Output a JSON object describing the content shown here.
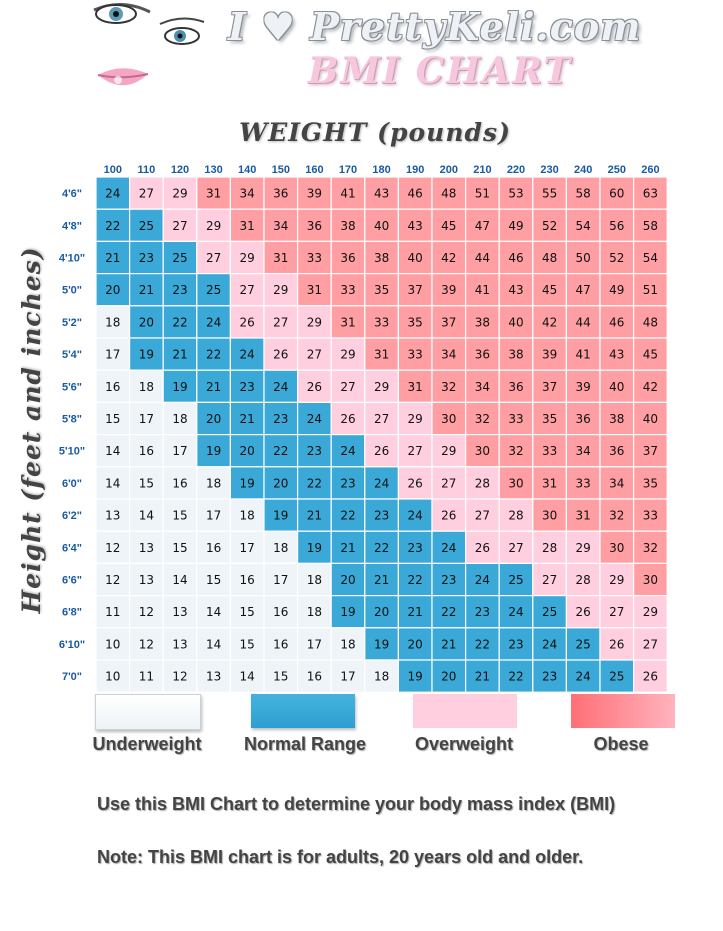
{
  "header": {
    "site_title": "I ♥ PrettyKeli.com",
    "chart_title": "BMI CHART"
  },
  "colors": {
    "underweight": "#eef4f7",
    "normal": "#3aa9d8",
    "overweight": "#ffcfe0",
    "obese": "#ff9ea3",
    "axis_label": "#1a5aa0"
  },
  "chart_data": {
    "type": "heatmap",
    "xlabel": "WEIGHT (pounds)",
    "ylabel": "Height (feet and inches)",
    "x": [
      "100",
      "110",
      "120",
      "130",
      "140",
      "150",
      "160",
      "170",
      "180",
      "190",
      "200",
      "210",
      "220",
      "230",
      "240",
      "250",
      "260"
    ],
    "y": [
      "4'6\"",
      "4'8\"",
      "4'10\"",
      "5'0\"",
      "5'2\"",
      "5'4\"",
      "5'6\"",
      "5'8\"",
      "5'10\"",
      "6'0\"",
      "6'2\"",
      "6'4\"",
      "6'6\"",
      "6'8\"",
      "6'10\"",
      "7'0\""
    ],
    "values": [
      [
        24,
        27,
        29,
        31,
        34,
        36,
        39,
        41,
        43,
        46,
        48,
        51,
        53,
        55,
        58,
        60,
        63
      ],
      [
        22,
        25,
        27,
        29,
        31,
        34,
        36,
        38,
        40,
        43,
        45,
        47,
        49,
        52,
        54,
        56,
        58
      ],
      [
        21,
        23,
        25,
        27,
        29,
        31,
        33,
        36,
        38,
        40,
        42,
        44,
        46,
        48,
        50,
        52,
        54
      ],
      [
        20,
        21,
        23,
        25,
        27,
        29,
        31,
        33,
        35,
        37,
        39,
        41,
        43,
        45,
        47,
        49,
        51
      ],
      [
        18,
        20,
        22,
        24,
        26,
        27,
        29,
        31,
        33,
        35,
        37,
        38,
        40,
        42,
        44,
        46,
        48
      ],
      [
        17,
        19,
        21,
        22,
        24,
        26,
        27,
        29,
        31,
        33,
        34,
        36,
        38,
        39,
        41,
        43,
        45
      ],
      [
        16,
        18,
        19,
        21,
        23,
        24,
        26,
        27,
        29,
        31,
        32,
        34,
        36,
        37,
        39,
        40,
        42
      ],
      [
        15,
        17,
        18,
        20,
        21,
        23,
        24,
        26,
        27,
        29,
        30,
        32,
        33,
        35,
        36,
        38,
        40
      ],
      [
        14,
        16,
        17,
        19,
        20,
        22,
        23,
        24,
        26,
        27,
        29,
        30,
        32,
        33,
        34,
        36,
        37
      ],
      [
        14,
        15,
        16,
        18,
        19,
        20,
        22,
        23,
        24,
        26,
        27,
        28,
        30,
        31,
        33,
        34,
        35
      ],
      [
        13,
        14,
        15,
        17,
        18,
        19,
        21,
        22,
        23,
        24,
        26,
        27,
        28,
        30,
        31,
        32,
        33
      ],
      [
        12,
        13,
        15,
        16,
        17,
        18,
        19,
        21,
        22,
        23,
        24,
        26,
        27,
        28,
        29,
        30,
        32
      ],
      [
        12,
        13,
        14,
        15,
        16,
        17,
        18,
        20,
        21,
        22,
        23,
        24,
        25,
        27,
        28,
        29,
        30
      ],
      [
        11,
        12,
        13,
        14,
        15,
        16,
        18,
        19,
        20,
        21,
        22,
        23,
        24,
        25,
        26,
        27,
        29
      ],
      [
        10,
        12,
        13,
        14,
        15,
        16,
        17,
        18,
        19,
        20,
        21,
        22,
        23,
        24,
        25,
        26,
        27
      ],
      [
        10,
        11,
        12,
        13,
        14,
        15,
        16,
        17,
        18,
        19,
        20,
        21,
        22,
        23,
        24,
        25,
        26
      ]
    ],
    "categories": [
      {
        "name": "Underweight",
        "range": [
          0,
          18
        ]
      },
      {
        "name": "Normal Range",
        "range": [
          19,
          25
        ]
      },
      {
        "name": "Overweight",
        "range": [
          26,
          29
        ]
      },
      {
        "name": "Obese",
        "range": [
          30,
          100
        ]
      }
    ]
  },
  "legend": {
    "underweight": "Underweight",
    "normal": "Normal Range",
    "overweight": "Overweight",
    "obese": "Obese"
  },
  "notes": {
    "line1": "Use this BMI Chart to determine your body mass index (BMI)",
    "line2": "Note: This BMI chart is for adults, 20 years old and older."
  }
}
